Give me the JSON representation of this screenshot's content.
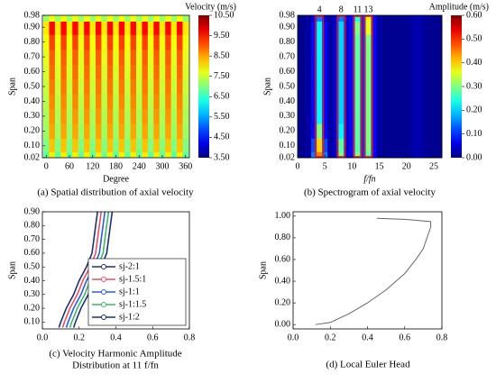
{
  "chart_data": [
    {
      "type": "heatmap",
      "title": "(a) Spatial distribution of axial velocity",
      "xlabel": "Degree",
      "ylabel": "Span",
      "x": [
        0,
        15,
        30,
        45,
        60,
        75,
        90,
        105,
        120,
        135,
        150,
        165,
        180,
        195,
        210,
        225,
        240,
        255,
        270,
        285,
        300,
        315,
        330,
        345,
        360
      ],
      "y": [
        0.02,
        0.1,
        0.2,
        0.3,
        0.4,
        0.5,
        0.6,
        0.7,
        0.8,
        0.9,
        0.98
      ],
      "z": [
        [
          6.8,
          8.0,
          6.8,
          8.0,
          6.8,
          8.0,
          6.8,
          8.0,
          6.8,
          8.0,
          6.8,
          8.0,
          6.8,
          8.0,
          6.8,
          8.0,
          6.8,
          8.0,
          6.8,
          8.0,
          6.8,
          8.0,
          6.8,
          8.0,
          6.8
        ],
        [
          7.0,
          8.3,
          7.0,
          8.3,
          7.0,
          8.3,
          7.0,
          8.3,
          7.0,
          8.3,
          7.0,
          8.3,
          7.0,
          8.3,
          7.0,
          8.3,
          7.0,
          8.3,
          7.0,
          8.3,
          7.0,
          8.3,
          7.0,
          8.3,
          7.0
        ],
        [
          7.2,
          8.5,
          7.2,
          8.5,
          7.2,
          8.5,
          7.2,
          8.5,
          7.2,
          8.5,
          7.2,
          8.5,
          7.2,
          8.5,
          7.2,
          8.5,
          7.2,
          8.5,
          7.2,
          8.5,
          7.2,
          8.5,
          7.2,
          8.5,
          7.2
        ],
        [
          7.3,
          8.6,
          7.3,
          8.6,
          7.3,
          8.6,
          7.3,
          8.6,
          7.3,
          8.6,
          7.3,
          8.6,
          7.3,
          8.6,
          7.3,
          8.6,
          7.3,
          8.6,
          7.3,
          8.6,
          7.3,
          8.6,
          7.3,
          8.6,
          7.3
        ],
        [
          7.4,
          8.7,
          7.4,
          8.7,
          7.4,
          8.7,
          7.4,
          8.7,
          7.4,
          8.7,
          7.4,
          8.7,
          7.4,
          8.7,
          7.4,
          8.7,
          7.4,
          8.7,
          7.4,
          8.7,
          7.4,
          8.7,
          7.4,
          8.7,
          7.4
        ],
        [
          7.5,
          8.8,
          7.5,
          8.8,
          7.5,
          8.8,
          7.5,
          8.8,
          7.5,
          8.8,
          7.5,
          8.8,
          7.5,
          8.8,
          7.5,
          8.8,
          7.5,
          8.8,
          7.5,
          8.8,
          7.5,
          8.8,
          7.5,
          8.8,
          7.5
        ],
        [
          7.6,
          8.9,
          7.6,
          8.9,
          7.6,
          8.9,
          7.6,
          8.9,
          7.6,
          8.9,
          7.6,
          8.9,
          7.6,
          8.9,
          7.6,
          8.9,
          7.6,
          8.9,
          7.6,
          8.9,
          7.6,
          8.9,
          7.6,
          8.9,
          7.6
        ],
        [
          7.7,
          9.0,
          7.7,
          9.0,
          7.7,
          9.0,
          7.7,
          9.0,
          7.7,
          9.0,
          7.7,
          9.0,
          7.7,
          9.0,
          7.7,
          9.0,
          7.7,
          9.0,
          7.7,
          9.0,
          7.7,
          9.0,
          7.7,
          9.0,
          7.7
        ],
        [
          7.8,
          9.2,
          7.8,
          9.2,
          7.8,
          9.2,
          7.8,
          9.2,
          7.8,
          9.2,
          7.8,
          9.2,
          7.8,
          9.2,
          7.8,
          9.2,
          7.8,
          9.2,
          7.8,
          9.2,
          7.8,
          9.2,
          7.8,
          9.2,
          7.8
        ],
        [
          8.0,
          9.6,
          8.0,
          9.6,
          8.0,
          9.6,
          8.0,
          9.6,
          8.0,
          9.6,
          8.0,
          9.6,
          8.0,
          9.6,
          8.0,
          9.6,
          8.0,
          9.6,
          8.0,
          9.6,
          8.0,
          9.6,
          8.0,
          9.6,
          8.0
        ],
        [
          7.2,
          7.8,
          7.2,
          7.8,
          7.2,
          7.8,
          7.2,
          7.8,
          7.2,
          7.8,
          7.2,
          7.8,
          7.2,
          7.8,
          7.2,
          7.8,
          7.2,
          7.8,
          7.2,
          7.8,
          7.2,
          7.8,
          7.2,
          7.8,
          7.2
        ]
      ],
      "xlim": [
        -10,
        370
      ],
      "xticks": [
        0,
        60,
        120,
        180,
        240,
        300,
        360
      ],
      "ylim": [
        0.02,
        0.98
      ],
      "yticks": [
        0.02,
        {
          "value": 0.1,
          "label": "0.10"
        },
        {
          "value": 0.2,
          "label": "0.20"
        },
        {
          "value": 0.3,
          "label": "0.30"
        },
        {
          "value": 0.4,
          "label": "0.40"
        },
        {
          "value": 0.5,
          "label": "0.50"
        },
        {
          "value": 0.6,
          "label": "0.60"
        },
        {
          "value": 0.7,
          "label": "0.70"
        },
        {
          "value": 0.8,
          "label": "0.80"
        },
        {
          "value": 0.9,
          "label": "0.90"
        },
        0.98
      ],
      "colorbar": {
        "label": "Velocity (m/s)",
        "lim": [
          3.5,
          10.5
        ],
        "colormap": "jet",
        "ticks": [
          {
            "value": 3.5,
            "label": "3.50"
          },
          {
            "value": 4.5,
            "label": "4.50"
          },
          {
            "value": 5.5,
            "label": "5.50"
          },
          {
            "value": 6.5,
            "label": "6.50"
          },
          {
            "value": 7.5,
            "label": "7.50"
          },
          {
            "value": 8.5,
            "label": "8.50"
          },
          {
            "value": 9.5,
            "label": "9.50"
          },
          {
            "value": 10.5,
            "label": "10.50"
          }
        ]
      }
    },
    {
      "type": "heatmap",
      "title": "(b) Spectrogram of axial velocity",
      "xlabel": "f/fn",
      "ylabel": "Span",
      "x": [
        0,
        1,
        2,
        3,
        4,
        5,
        6,
        7,
        8,
        9,
        10,
        11,
        12,
        13,
        14,
        15,
        16,
        17,
        18,
        19,
        20,
        21,
        22,
        23,
        24,
        25,
        26
      ],
      "y": [
        0.02,
        0.1,
        0.2,
        0.3,
        0.4,
        0.5,
        0.6,
        0.7,
        0.8,
        0.9,
        0.98
      ],
      "z": [
        [
          0.01,
          0.01,
          0.02,
          0.15,
          0.45,
          0.15,
          0.02,
          0.05,
          0.3,
          0.05,
          0.08,
          0.3,
          0.1,
          0.28,
          0.08,
          0.02,
          0.01,
          0.01,
          0.01,
          0.01,
          0.01,
          0.02,
          0.03,
          0.02,
          0.01,
          0.01,
          0.01
        ],
        [
          0.01,
          0.01,
          0.02,
          0.12,
          0.4,
          0.12,
          0.02,
          0.05,
          0.28,
          0.05,
          0.08,
          0.28,
          0.1,
          0.3,
          0.08,
          0.02,
          0.01,
          0.01,
          0.01,
          0.01,
          0.01,
          0.02,
          0.03,
          0.02,
          0.01,
          0.01,
          0.01
        ],
        [
          0.01,
          0.01,
          0.02,
          0.08,
          0.3,
          0.08,
          0.02,
          0.05,
          0.22,
          0.05,
          0.08,
          0.28,
          0.1,
          0.3,
          0.08,
          0.02,
          0.01,
          0.01,
          0.01,
          0.01,
          0.01,
          0.02,
          0.03,
          0.02,
          0.01,
          0.01,
          0.01
        ],
        [
          0.01,
          0.01,
          0.02,
          0.08,
          0.22,
          0.08,
          0.02,
          0.05,
          0.2,
          0.05,
          0.08,
          0.28,
          0.1,
          0.3,
          0.08,
          0.02,
          0.01,
          0.01,
          0.01,
          0.01,
          0.01,
          0.02,
          0.03,
          0.02,
          0.01,
          0.01,
          0.01
        ],
        [
          0.01,
          0.01,
          0.02,
          0.08,
          0.22,
          0.08,
          0.02,
          0.05,
          0.2,
          0.05,
          0.08,
          0.28,
          0.1,
          0.3,
          0.08,
          0.02,
          0.01,
          0.01,
          0.01,
          0.01,
          0.01,
          0.02,
          0.03,
          0.02,
          0.01,
          0.01,
          0.01
        ],
        [
          0.01,
          0.01,
          0.02,
          0.08,
          0.22,
          0.08,
          0.02,
          0.05,
          0.2,
          0.05,
          0.08,
          0.28,
          0.1,
          0.3,
          0.08,
          0.02,
          0.01,
          0.01,
          0.01,
          0.01,
          0.01,
          0.02,
          0.03,
          0.02,
          0.01,
          0.01,
          0.01
        ],
        [
          0.01,
          0.01,
          0.02,
          0.08,
          0.22,
          0.08,
          0.02,
          0.05,
          0.2,
          0.05,
          0.08,
          0.28,
          0.1,
          0.3,
          0.08,
          0.02,
          0.01,
          0.01,
          0.01,
          0.01,
          0.01,
          0.02,
          0.03,
          0.02,
          0.01,
          0.01,
          0.01
        ],
        [
          0.01,
          0.01,
          0.02,
          0.08,
          0.22,
          0.08,
          0.02,
          0.05,
          0.2,
          0.05,
          0.08,
          0.28,
          0.1,
          0.3,
          0.08,
          0.02,
          0.01,
          0.01,
          0.01,
          0.01,
          0.01,
          0.02,
          0.03,
          0.02,
          0.01,
          0.01,
          0.01
        ],
        [
          0.01,
          0.01,
          0.02,
          0.08,
          0.22,
          0.08,
          0.02,
          0.05,
          0.2,
          0.05,
          0.08,
          0.28,
          0.1,
          0.3,
          0.08,
          0.02,
          0.01,
          0.01,
          0.01,
          0.01,
          0.01,
          0.02,
          0.03,
          0.02,
          0.01,
          0.01,
          0.01
        ],
        [
          0.01,
          0.01,
          0.02,
          0.08,
          0.22,
          0.08,
          0.02,
          0.05,
          0.2,
          0.05,
          0.08,
          0.3,
          0.1,
          0.36,
          0.08,
          0.02,
          0.01,
          0.01,
          0.01,
          0.01,
          0.01,
          0.02,
          0.03,
          0.02,
          0.01,
          0.01,
          0.01
        ],
        [
          0.01,
          0.01,
          0.02,
          0.05,
          0.15,
          0.05,
          0.02,
          0.05,
          0.15,
          0.05,
          0.08,
          0.25,
          0.1,
          0.38,
          0.08,
          0.02,
          0.01,
          0.01,
          0.01,
          0.01,
          0.01,
          0.02,
          0.03,
          0.02,
          0.01,
          0.01,
          0.01
        ]
      ],
      "xlim": [
        0,
        26.5
      ],
      "xticks": [
        0,
        5,
        10,
        15,
        20,
        25
      ],
      "ylim": [
        0.02,
        0.98
      ],
      "yticks": [
        0.02,
        {
          "value": 0.1,
          "label": "0.10"
        },
        {
          "value": 0.2,
          "label": "0.20"
        },
        {
          "value": 0.3,
          "label": "0.30"
        },
        {
          "value": 0.4,
          "label": "0.40"
        },
        {
          "value": 0.5,
          "label": "0.50"
        },
        {
          "value": 0.6,
          "label": "0.60"
        },
        {
          "value": 0.7,
          "label": "0.70"
        },
        {
          "value": 0.8,
          "label": "0.80"
        },
        {
          "value": 0.9,
          "label": "0.90"
        },
        0.98
      ],
      "annotations": [
        {
          "text": "4",
          "x": 4
        },
        {
          "text": "8",
          "x": 8
        },
        {
          "text": "11",
          "x": 11
        },
        {
          "text": "13",
          "x": 13
        }
      ],
      "annotation_color": "#e8102a",
      "colorbar": {
        "label": "Amplitude (m/s)",
        "lim": [
          0,
          0.6
        ],
        "colormap": "jet",
        "ticks": [
          {
            "value": 0,
            "label": "0.00"
          },
          {
            "value": 0.1,
            "label": "0.10"
          },
          {
            "value": 0.2,
            "label": "0.20"
          },
          {
            "value": 0.3,
            "label": "0.30"
          },
          {
            "value": 0.4,
            "label": "0.40"
          },
          {
            "value": 0.5,
            "label": "0.50"
          },
          {
            "value": 0.6,
            "label": "0.60"
          }
        ]
      }
    },
    {
      "type": "line",
      "title": [
        "(c) Velocity Harmonic Amplitude",
        "Distribution at 11 f/fn"
      ],
      "ylabel": "Span",
      "y": [
        0.06,
        0.1,
        0.2,
        0.3,
        0.4,
        0.5,
        0.6,
        0.7,
        0.8,
        0.9
      ],
      "series": [
        {
          "name": "sj-2:1",
          "color": "#1f2f6e",
          "values": [
            0.09,
            0.1,
            0.13,
            0.17,
            0.2,
            0.24,
            0.27,
            0.28,
            0.29,
            0.3
          ]
        },
        {
          "name": "sj-1.5:1",
          "color": "#e8506a",
          "values": [
            0.11,
            0.12,
            0.15,
            0.19,
            0.22,
            0.26,
            0.29,
            0.3,
            0.31,
            0.32
          ]
        },
        {
          "name": "sj-1:1",
          "color": "#2a5cd8",
          "values": [
            0.13,
            0.14,
            0.17,
            0.21,
            0.24,
            0.28,
            0.31,
            0.32,
            0.33,
            0.34
          ]
        },
        {
          "name": "sj-1:1.5",
          "color": "#3cb86a",
          "values": [
            0.15,
            0.16,
            0.19,
            0.23,
            0.26,
            0.3,
            0.33,
            0.34,
            0.35,
            0.36
          ]
        },
        {
          "name": "sj-1:2",
          "color": "#1f2f6e",
          "values": [
            0.17,
            0.18,
            0.21,
            0.25,
            0.28,
            0.32,
            0.35,
            0.36,
            0.37,
            0.38
          ]
        }
      ],
      "legend": "lower right",
      "xlim": [
        0,
        0.8
      ],
      "xticks": [
        {
          "value": 0,
          "label": "0.0"
        },
        {
          "value": 0.2,
          "label": "0.2"
        },
        {
          "value": 0.4,
          "label": "0.4"
        },
        {
          "value": 0.6,
          "label": "0.6"
        },
        {
          "value": 0.8,
          "label": "0.8"
        }
      ],
      "ylim": [
        0.05,
        0.9
      ],
      "yticks": [
        {
          "value": 0.1,
          "label": "0.10"
        },
        {
          "value": 0.2,
          "label": "0.20"
        },
        {
          "value": 0.3,
          "label": "0.30"
        },
        {
          "value": 0.4,
          "label": "0.40"
        },
        {
          "value": 0.5,
          "label": "0.50"
        },
        {
          "value": 0.6,
          "label": "0.60"
        },
        {
          "value": 0.7,
          "label": "0.70"
        },
        {
          "value": 0.8,
          "label": "0.80"
        },
        {
          "value": 0.9,
          "label": "0.90"
        }
      ]
    },
    {
      "type": "line",
      "title": "(d) Local Euler Head",
      "ylabel": "Span",
      "y": [
        0,
        0.02,
        0.1,
        0.2,
        0.32,
        0.47,
        0.6,
        0.7,
        0.8,
        0.9,
        0.95,
        0.97,
        0.98
      ],
      "series": [
        {
          "color": "#666666",
          "values": [
            0.12,
            0.2,
            0.3,
            0.4,
            0.5,
            0.6,
            0.66,
            0.7,
            0.72,
            0.74,
            0.74,
            0.6,
            0.45
          ]
        }
      ],
      "xlim": [
        0,
        0.8
      ],
      "xticks": [
        {
          "value": 0,
          "label": "0.0"
        },
        {
          "value": 0.2,
          "label": "0.2"
        },
        {
          "value": 0.4,
          "label": "0.4"
        },
        {
          "value": 0.6,
          "label": "0.6"
        },
        {
          "value": 0.8,
          "label": "0.8"
        }
      ],
      "ylim": [
        -0.04,
        1.04
      ],
      "yticks": [
        {
          "value": 0,
          "label": "0.00"
        },
        {
          "value": 0.2,
          "label": "0.20"
        },
        {
          "value": 0.4,
          "label": "0.40"
        },
        {
          "value": 0.6,
          "label": "0.60"
        },
        {
          "value": 0.8,
          "label": "0.80"
        },
        {
          "value": 1,
          "label": "1.00"
        }
      ]
    }
  ]
}
